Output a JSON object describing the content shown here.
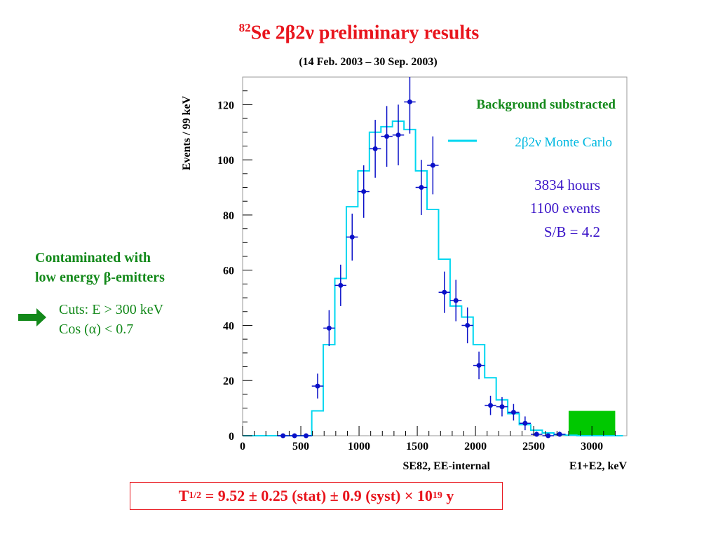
{
  "header": {
    "title_sup": "82",
    "title_main": "Se 2β2ν preliminary results",
    "subtitle": "(14 Feb. 2003 –  30 Sep. 2003)"
  },
  "left_note": {
    "line1": "Contaminated with",
    "line2": "low energy β-emitters",
    "cut1": "Cuts:  E > 300 keV",
    "cut2": "Cos (α) < 0.7"
  },
  "result": {
    "prefix": "T",
    "sub": "1/2",
    "body": " = 9.52 ± 0.25 (stat) ± 0.9 (syst) × 10",
    "exp": "19",
    "suffix": " y"
  },
  "colors": {
    "title": "#e8141c",
    "green": "#13891a",
    "mc": "#00d7f0",
    "points": "#0a10c8",
    "annot": "#3a14c8",
    "box": "#00c800"
  },
  "chart_data": {
    "type": "histogram",
    "ylabel": "Events / 99 keV",
    "xlabel": "SE82, EE-internal",
    "xlabel_right": "E1+E2, keV",
    "xlim": [
      0,
      3300
    ],
    "ylim": [
      0,
      130
    ],
    "x_ticks": [
      0,
      500,
      1000,
      1500,
      2000,
      2500,
      3000
    ],
    "y_ticks": [
      0,
      20,
      40,
      60,
      80,
      100,
      120
    ],
    "grid": false,
    "annotations": {
      "bg": "Background substracted",
      "legend_mc": "2β2ν Monte Carlo",
      "hours": "3834 hours",
      "events": "1100 events",
      "sb": "S/B = 4.2"
    },
    "series": [
      {
        "name": "2β2ν Monte Carlo",
        "style": "step",
        "edges": [
          0,
          99,
          198,
          297,
          396,
          495,
          594,
          693,
          792,
          891,
          990,
          1089,
          1188,
          1287,
          1386,
          1485,
          1584,
          1683,
          1782,
          1881,
          1980,
          2079,
          2178,
          2277,
          2376,
          2475,
          2574,
          2673,
          2772,
          2871,
          2970,
          3069,
          3168,
          3267
        ],
        "values": [
          0,
          0,
          0,
          0,
          0,
          0,
          9,
          33,
          57,
          83,
          96,
          110,
          112,
          114,
          111,
          96,
          82,
          64,
          47,
          43,
          33,
          21,
          13,
          8,
          4,
          2,
          1,
          0.4,
          0.2,
          0,
          0,
          0,
          0
        ]
      },
      {
        "name": "Data",
        "style": "errorbar",
        "x": [
          347,
          446,
          545,
          644,
          743,
          842,
          941,
          1040,
          1139,
          1238,
          1337,
          1436,
          1535,
          1634,
          1733,
          1832,
          1931,
          2030,
          2129,
          2228,
          2327,
          2426,
          2525,
          2624,
          2723
        ],
        "values": [
          0,
          0,
          0,
          18,
          39,
          54.5,
          72,
          88.5,
          104,
          108.5,
          109,
          121,
          90,
          98,
          52,
          49,
          40,
          25.5,
          11,
          10.5,
          8.5,
          4.5,
          0.5,
          0,
          0.5
        ],
        "errors": [
          0.5,
          0.5,
          0.5,
          4.5,
          6.5,
          7.5,
          8.5,
          9.5,
          10.5,
          11,
          11,
          11.5,
          10,
          10.5,
          7.5,
          7.5,
          6.5,
          5,
          3.5,
          3.5,
          3,
          2.5,
          1,
          0.5,
          1
        ]
      }
    ],
    "highlight_region": {
      "x0": 2800,
      "x1": 3200,
      "y0": 0,
      "y1": 9
    }
  }
}
